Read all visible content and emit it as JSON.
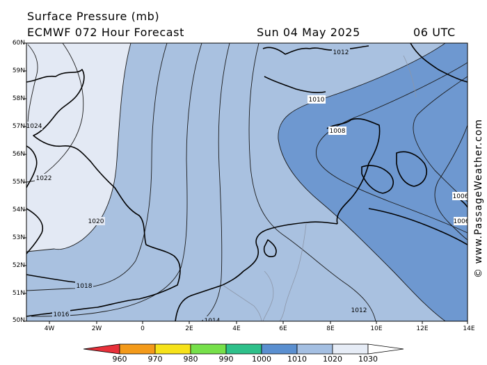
{
  "header": {
    "title": "Surface Pressure (mb)",
    "model_line": "ECMWF 072 Hour Forecast",
    "date": "Sun 04 May 2025",
    "time": "06 UTC"
  },
  "map": {
    "lat_labels": [
      "60N",
      "59N",
      "58N",
      "57N",
      "56N",
      "55N",
      "54N",
      "53N",
      "52N",
      "51N",
      "50N"
    ],
    "lon_labels": [
      "4W",
      "2W",
      "0",
      "2E",
      "4E",
      "6E",
      "8E",
      "10E",
      "12E",
      "14E"
    ],
    "isobar_labels": [
      "1024",
      "1022",
      "1020",
      "1018",
      "1016",
      "1014",
      "1012",
      "1012",
      "1010",
      "1008",
      "1006",
      "1006"
    ],
    "fill_colors": {
      "band_1020_1030": "#e3e9f4",
      "band_1010_1020": "#a9c1e0",
      "band_1000_1010": "#6e98d0"
    }
  },
  "watermark": "© www.PassageWeather.com",
  "colorbar": {
    "labels": [
      "960",
      "970",
      "980",
      "990",
      "1000",
      "1010",
      "1020",
      "1030"
    ],
    "colors": [
      "#e8303a",
      "#f39a1a",
      "#f6e21a",
      "#76e04a",
      "#2ec08a",
      "#5a8fd0",
      "#a4bfe2",
      "#e6ecf6"
    ]
  }
}
